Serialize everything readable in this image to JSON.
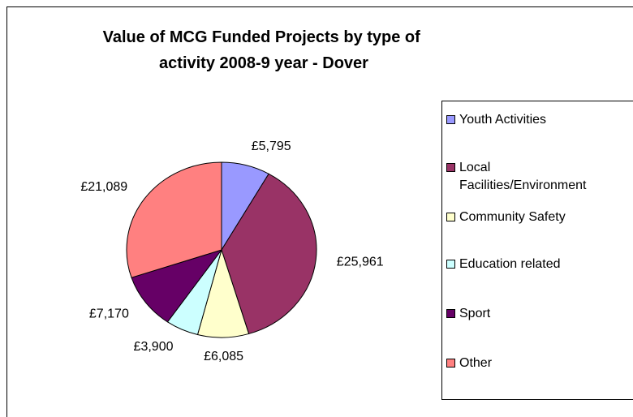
{
  "chart_data": {
    "type": "pie",
    "title": "Value of MCG Funded Projects by type of activity 2008-9 year - Dover",
    "categories": [
      "Youth Activities",
      "Local Facilities/Environment",
      "Community Safety",
      "Education related",
      "Sport",
      "Other"
    ],
    "values": [
      5795,
      25961,
      6085,
      3900,
      7170,
      21089
    ],
    "value_labels": [
      "£5,795",
      "£25,961",
      "£6,085",
      "£3,900",
      "£7,170",
      "£21,089"
    ],
    "colors": [
      "#9999ff",
      "#993366",
      "#ffffcc",
      "#ccffff",
      "#660066",
      "#ff8080"
    ],
    "legend": "right"
  }
}
